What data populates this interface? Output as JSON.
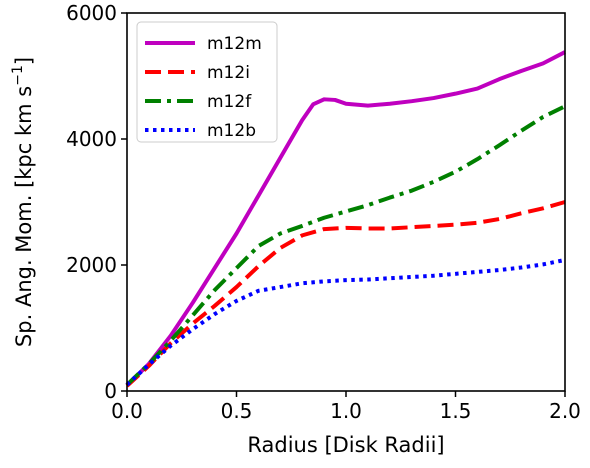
{
  "chart_data": {
    "type": "line",
    "xlabel": "Radius [Disk Radii]",
    "ylabel": "Sp. Ang. Mom. [kpc km s",
    "ylabel_sup": "−1",
    "ylabel_end": "]",
    "xlim": [
      0.0,
      2.0
    ],
    "ylim": [
      0,
      6000
    ],
    "xticks": [
      0.0,
      0.5,
      1.0,
      1.5,
      2.0
    ],
    "xtick_labels": [
      "0.0",
      "0.5",
      "1.0",
      "1.5",
      "2.0"
    ],
    "yticks": [
      0,
      2000,
      4000,
      6000
    ],
    "ytick_labels": [
      "0",
      "2000",
      "4000",
      "6000"
    ],
    "grid": false,
    "legend_placement": "top-left",
    "series": [
      {
        "name": "m12m",
        "color": "#bf00bf",
        "dash": "solid",
        "x": [
          0.0,
          0.1,
          0.2,
          0.3,
          0.4,
          0.5,
          0.6,
          0.7,
          0.8,
          0.85,
          0.9,
          0.95,
          1.0,
          1.1,
          1.2,
          1.3,
          1.4,
          1.5,
          1.6,
          1.7,
          1.8,
          1.9,
          2.0
        ],
        "y": [
          90,
          430,
          880,
          1400,
          1950,
          2500,
          3100,
          3700,
          4300,
          4550,
          4630,
          4620,
          4560,
          4530,
          4560,
          4600,
          4650,
          4720,
          4800,
          4950,
          5080,
          5200,
          5380
        ]
      },
      {
        "name": "m12i",
        "color": "#ff0000",
        "dash": "dashed",
        "x": [
          0.0,
          0.1,
          0.2,
          0.3,
          0.4,
          0.5,
          0.6,
          0.7,
          0.8,
          0.9,
          1.0,
          1.1,
          1.2,
          1.3,
          1.4,
          1.5,
          1.6,
          1.7,
          1.8,
          1.9,
          2.0
        ],
        "y": [
          80,
          400,
          760,
          1070,
          1350,
          1650,
          1980,
          2270,
          2470,
          2570,
          2590,
          2580,
          2580,
          2600,
          2620,
          2640,
          2670,
          2730,
          2820,
          2900,
          3000
        ]
      },
      {
        "name": "m12f",
        "color": "#008000",
        "dash": "dashdot",
        "x": [
          0.0,
          0.1,
          0.2,
          0.3,
          0.4,
          0.5,
          0.6,
          0.7,
          0.8,
          0.9,
          1.0,
          1.1,
          1.2,
          1.3,
          1.4,
          1.5,
          1.6,
          1.7,
          1.8,
          1.9,
          2.0
        ],
        "y": [
          100,
          430,
          800,
          1200,
          1600,
          1950,
          2300,
          2500,
          2620,
          2750,
          2850,
          2950,
          3070,
          3180,
          3320,
          3480,
          3680,
          3900,
          4130,
          4350,
          4520
        ]
      },
      {
        "name": "m12b",
        "color": "#0000ff",
        "dash": "dotted",
        "x": [
          0.0,
          0.1,
          0.2,
          0.3,
          0.4,
          0.5,
          0.6,
          0.7,
          0.8,
          0.9,
          1.0,
          1.1,
          1.2,
          1.3,
          1.4,
          1.5,
          1.6,
          1.7,
          1.8,
          1.9,
          2.0
        ],
        "y": [
          100,
          420,
          720,
          980,
          1220,
          1430,
          1590,
          1650,
          1710,
          1740,
          1760,
          1770,
          1790,
          1810,
          1830,
          1860,
          1890,
          1920,
          1960,
          2010,
          2080
        ]
      }
    ]
  }
}
